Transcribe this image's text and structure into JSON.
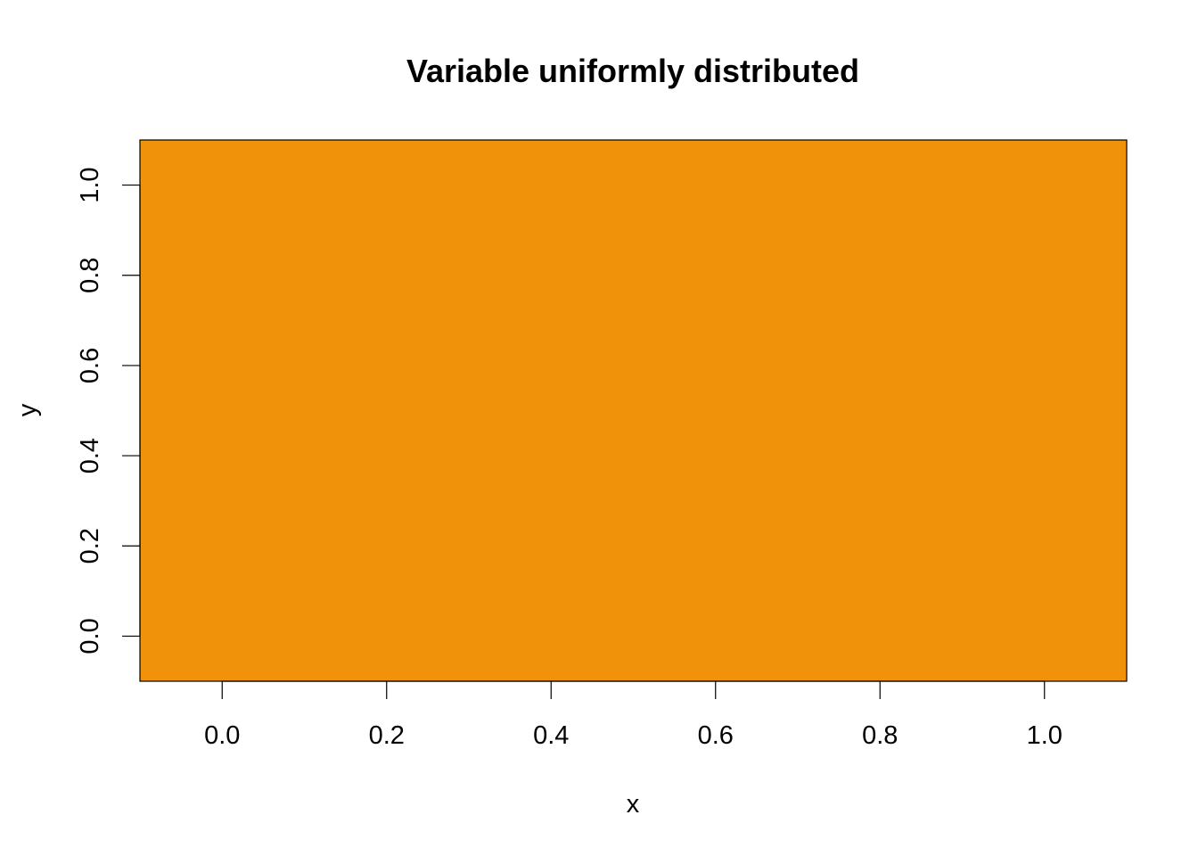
{
  "chart_data": {
    "type": "heatmap",
    "title": "Variable uniformly distributed",
    "xlabel": "x",
    "ylabel": "y",
    "xlim": [
      -0.1,
      1.1
    ],
    "ylim": [
      -0.1,
      1.1
    ],
    "x_ticks": [
      0.0,
      0.2,
      0.4,
      0.6,
      0.8,
      1.0
    ],
    "x_tick_labels": [
      "0.0",
      "0.2",
      "0.4",
      "0.6",
      "0.8",
      "1.0"
    ],
    "y_ticks": [
      0.0,
      0.2,
      0.4,
      0.6,
      0.8,
      1.0
    ],
    "y_tick_labels": [
      "0.0",
      "0.2",
      "0.4",
      "0.6",
      "0.8",
      "1.0"
    ],
    "fill_color": "#F0920A",
    "grid": false,
    "legend": "none"
  }
}
